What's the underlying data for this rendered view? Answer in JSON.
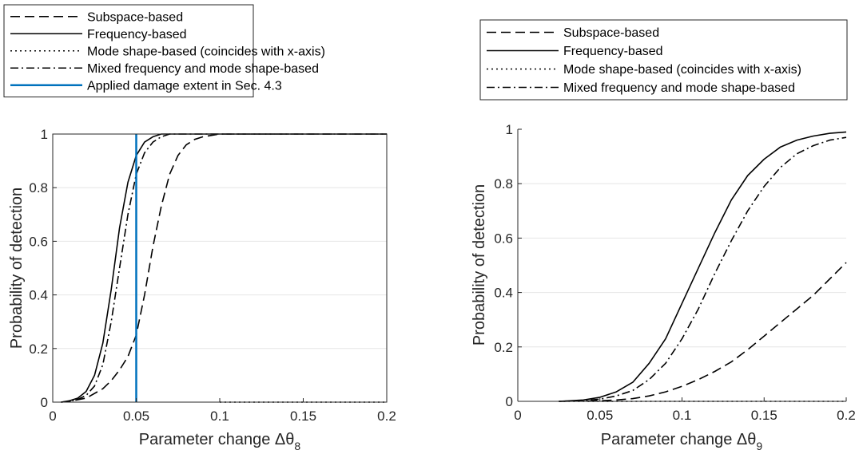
{
  "chart_data": [
    {
      "type": "line",
      "xlabel": "Parameter change Δθ",
      "xlabel_subscript": "8",
      "ylabel": "Probability of detection",
      "xlim": [
        0,
        0.2
      ],
      "ylim": [
        0,
        1
      ],
      "xticks": [
        "0",
        "0.05",
        "0.1",
        "0.15",
        "0.2"
      ],
      "yticks": [
        "0",
        "0.2",
        "0.4",
        "0.6",
        "0.8",
        "1"
      ],
      "grid": "horizontal",
      "legend_position": "top, outside plot",
      "series": [
        {
          "name": "Subspace-based",
          "style": "dashed",
          "color": "#000000",
          "x": [
            0.005,
            0.01,
            0.02,
            0.03,
            0.035,
            0.04,
            0.045,
            0.05,
            0.055,
            0.06,
            0.065,
            0.07,
            0.075,
            0.08,
            0.085,
            0.09,
            0.095,
            0.1,
            0.11,
            0.12,
            0.15,
            0.2
          ],
          "y": [
            0,
            0.003,
            0.015,
            0.05,
            0.08,
            0.12,
            0.17,
            0.25,
            0.4,
            0.58,
            0.73,
            0.85,
            0.92,
            0.96,
            0.98,
            0.99,
            0.995,
            1,
            1,
            1,
            1,
            1
          ]
        },
        {
          "name": "Frequency-based",
          "style": "solid",
          "color": "#000000",
          "x": [
            0.005,
            0.01,
            0.015,
            0.02,
            0.025,
            0.03,
            0.035,
            0.04,
            0.045,
            0.05,
            0.055,
            0.06,
            0.065,
            0.07,
            0.08,
            0.1,
            0.15,
            0.2
          ],
          "y": [
            0,
            0.005,
            0.015,
            0.04,
            0.1,
            0.22,
            0.42,
            0.65,
            0.82,
            0.92,
            0.97,
            0.99,
            1,
            1,
            1,
            1,
            1,
            1
          ]
        },
        {
          "name": "Mode shape-based (coincides with x-axis)",
          "style": "dotted",
          "color": "#000000",
          "x": [
            0.1,
            0.2
          ],
          "y": [
            0,
            0
          ]
        },
        {
          "name": "Mixed frequency and mode shape-based",
          "style": "dashdot",
          "color": "#000000",
          "x": [
            0.005,
            0.01,
            0.015,
            0.02,
            0.025,
            0.03,
            0.035,
            0.04,
            0.045,
            0.05,
            0.055,
            0.06,
            0.065,
            0.07,
            0.075,
            0.08,
            0.1,
            0.15,
            0.2
          ],
          "y": [
            0,
            0.003,
            0.01,
            0.025,
            0.06,
            0.14,
            0.3,
            0.5,
            0.7,
            0.85,
            0.93,
            0.97,
            0.99,
            1,
            1,
            1,
            1,
            1,
            1
          ]
        },
        {
          "name": "Applied damage extent in Sec. 4.3",
          "style": "solid",
          "color": "#0072BD",
          "x": [
            0.05,
            0.05
          ],
          "y": [
            0,
            1
          ]
        }
      ]
    },
    {
      "type": "line",
      "xlabel": "Parameter change Δθ",
      "xlabel_subscript": "9",
      "ylabel": "Probability of detection",
      "xlim": [
        0,
        0.2
      ],
      "ylim": [
        0,
        1
      ],
      "xticks": [
        "0",
        "0.05",
        "0.1",
        "0.15",
        "0.2"
      ],
      "yticks": [
        "0",
        "0.2",
        "0.4",
        "0.6",
        "0.8",
        "1"
      ],
      "grid": "horizontal",
      "legend_position": "top, outside plot",
      "series": [
        {
          "name": "Subspace-based",
          "style": "dashed",
          "color": "#000000",
          "x": [
            0.025,
            0.05,
            0.06,
            0.07,
            0.08,
            0.09,
            0.1,
            0.11,
            0.12,
            0.13,
            0.14,
            0.15,
            0.16,
            0.17,
            0.18,
            0.19,
            0.2
          ],
          "y": [
            0,
            0.002,
            0.005,
            0.01,
            0.02,
            0.035,
            0.055,
            0.08,
            0.11,
            0.145,
            0.19,
            0.24,
            0.29,
            0.34,
            0.39,
            0.45,
            0.51
          ]
        },
        {
          "name": "Frequency-based",
          "style": "solid",
          "color": "#000000",
          "x": [
            0.025,
            0.04,
            0.05,
            0.06,
            0.07,
            0.08,
            0.09,
            0.1,
            0.11,
            0.12,
            0.13,
            0.14,
            0.15,
            0.16,
            0.17,
            0.18,
            0.19,
            0.2
          ],
          "y": [
            0,
            0.005,
            0.015,
            0.035,
            0.07,
            0.14,
            0.23,
            0.36,
            0.49,
            0.62,
            0.74,
            0.83,
            0.89,
            0.935,
            0.96,
            0.975,
            0.985,
            0.99
          ]
        },
        {
          "name": "Mode shape-based (coincides with x-axis)",
          "style": "dotted",
          "color": "#000000",
          "x": [
            0.025,
            0.2
          ],
          "y": [
            0,
            0
          ]
        },
        {
          "name": "Mixed frequency and mode shape-based",
          "style": "dashdot",
          "color": "#000000",
          "x": [
            0.025,
            0.04,
            0.05,
            0.06,
            0.07,
            0.08,
            0.09,
            0.1,
            0.11,
            0.12,
            0.13,
            0.14,
            0.15,
            0.16,
            0.17,
            0.18,
            0.19,
            0.2
          ],
          "y": [
            0,
            0.003,
            0.008,
            0.02,
            0.04,
            0.08,
            0.14,
            0.23,
            0.34,
            0.47,
            0.59,
            0.7,
            0.79,
            0.86,
            0.91,
            0.94,
            0.96,
            0.97
          ]
        }
      ]
    }
  ]
}
